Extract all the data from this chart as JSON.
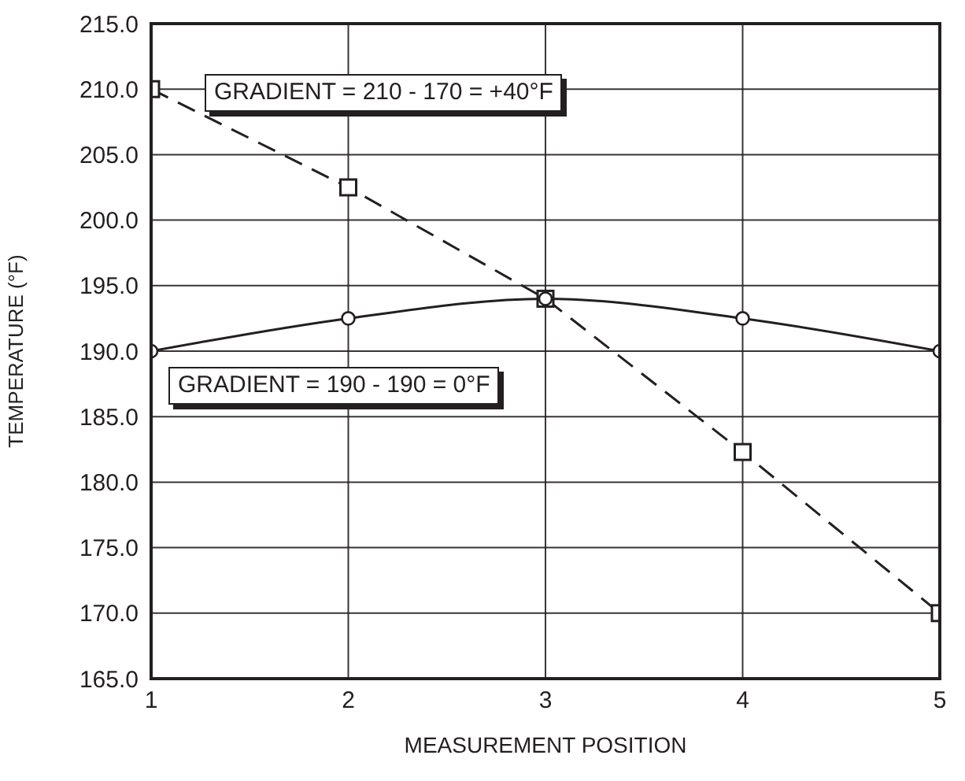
{
  "chart_data": {
    "type": "line",
    "xlabel": "MEASUREMENT POSITION",
    "ylabel": "TEMPERATURE (°F)",
    "x": [
      1,
      2,
      3,
      4,
      5
    ],
    "series": [
      {
        "color": "#231f20",
        "values": [
          210,
          202.5,
          194,
          182.3,
          170
        ],
        "marker": "square",
        "line_style": "dashed"
      },
      {
        "color": "#231f20",
        "values": [
          190,
          192.5,
          194,
          192.5,
          190
        ],
        "marker": "circle",
        "line_style": "solid"
      }
    ],
    "xlim": [
      1,
      5
    ],
    "xticks": [
      1,
      2,
      3,
      4,
      5
    ],
    "ylim": [
      165,
      215
    ],
    "yticks": [
      {
        "value": 165,
        "label": "165.0"
      },
      {
        "value": 170,
        "label": "170.0"
      },
      {
        "value": 175,
        "label": "175.0"
      },
      {
        "value": 180,
        "label": "180.0"
      },
      {
        "value": 185,
        "label": "185.0"
      },
      {
        "value": 190,
        "label": "190.0"
      },
      {
        "value": 195,
        "label": "195.0"
      },
      {
        "value": 200,
        "label": "200.0"
      },
      {
        "value": 205,
        "label": "205.0"
      },
      {
        "value": 210,
        "label": "210.0"
      },
      {
        "value": 215,
        "label": "215.0"
      }
    ],
    "grid": true,
    "legend": false,
    "annotations": [
      "GRADIENT = 210 - 170 = +40°F",
      "GRADIENT = 190 - 190 = 0°F"
    ]
  }
}
